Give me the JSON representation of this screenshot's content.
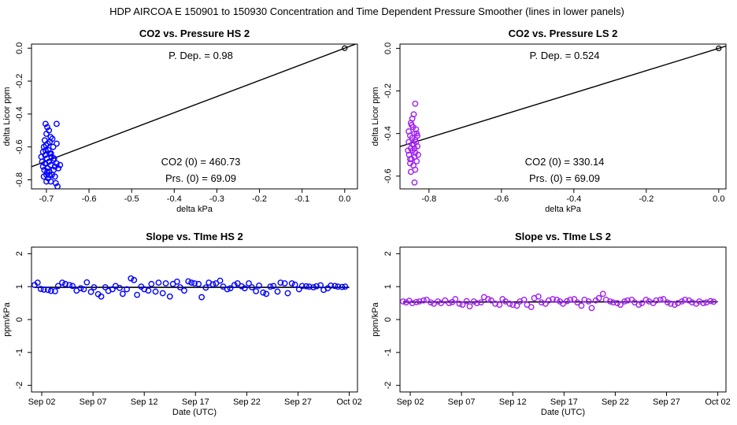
{
  "page_title": "HDP   AIRCOA E   150901 to 150930   Concentration and Time Dependent Pressure Smoother (lines in lower panels)",
  "colors": {
    "hs": "#0000ff",
    "ls": "#a020f0",
    "line": "#000000",
    "frame": "#000000"
  },
  "chart_data": [
    {
      "id": "co2-vs-pressure-hs2",
      "type": "scatter",
      "title": "CO2 vs. Pressure HS 2",
      "xlabel": "delta kPa",
      "ylabel": "delta Licor ppm",
      "xlim": [
        -0.735,
        0.03
      ],
      "ylim": [
        -0.855,
        0.025
      ],
      "xticks": [
        -0.7,
        -0.6,
        -0.5,
        -0.4,
        -0.3,
        -0.2,
        -0.1,
        0.0
      ],
      "xtick_labels": [
        "-0.7",
        "-0.6",
        "-0.5",
        "-0.4",
        "-0.3",
        "-0.2",
        "-0.1",
        "0.0"
      ],
      "yticks": [
        0.0,
        -0.2,
        -0.4,
        -0.6,
        -0.8
      ],
      "ytick_labels": [
        "0.0",
        "-0.2",
        "-0.4",
        "-0.6",
        "-0.8"
      ],
      "color": "#0000ff",
      "fit_line": {
        "slope": 0.98,
        "intercept": 0.0
      },
      "origin_point": [
        0.0,
        0.0
      ],
      "annotations": {
        "p_dep": "P. Dep. =  0.98",
        "co2_zero": "CO2 (0) =  460.73",
        "prs_zero": "Prs. (0) =  69.09"
      },
      "points": [
        [
          -0.702,
          -0.46
        ],
        [
          -0.698,
          -0.48
        ],
        [
          -0.694,
          -0.5
        ],
        [
          -0.7,
          -0.52
        ],
        [
          -0.69,
          -0.54
        ],
        [
          -0.704,
          -0.56
        ],
        [
          -0.676,
          -0.46
        ],
        [
          -0.684,
          -0.6
        ],
        [
          -0.697,
          -0.58
        ],
        [
          -0.706,
          -0.6
        ],
        [
          -0.702,
          -0.62
        ],
        [
          -0.692,
          -0.64
        ],
        [
          -0.708,
          -0.63
        ],
        [
          -0.688,
          -0.66
        ],
        [
          -0.699,
          -0.67
        ],
        [
          -0.694,
          -0.69
        ],
        [
          -0.703,
          -0.7
        ],
        [
          -0.69,
          -0.71
        ],
        [
          -0.697,
          -0.73
        ],
        [
          -0.705,
          -0.74
        ],
        [
          -0.693,
          -0.75
        ],
        [
          -0.7,
          -0.77
        ],
        [
          -0.687,
          -0.77
        ],
        [
          -0.708,
          -0.72
        ],
        [
          -0.696,
          -0.79
        ],
        [
          -0.69,
          -0.81
        ],
        [
          -0.68,
          -0.78
        ],
        [
          -0.683,
          -0.74
        ],
        [
          -0.676,
          -0.7
        ],
        [
          -0.668,
          -0.71
        ],
        [
          -0.672,
          -0.73
        ],
        [
          -0.686,
          -0.55
        ],
        [
          -0.712,
          -0.66
        ],
        [
          -0.71,
          -0.69
        ],
        [
          -0.7,
          -0.81
        ],
        [
          -0.678,
          -0.82
        ],
        [
          -0.674,
          -0.84
        ],
        [
          -0.695,
          -0.62
        ],
        [
          -0.689,
          -0.64
        ],
        [
          -0.682,
          -0.67
        ],
        [
          -0.703,
          -0.65
        ],
        [
          -0.698,
          -0.75
        ],
        [
          -0.693,
          -0.77
        ],
        [
          -0.68,
          -0.72
        ],
        [
          -0.706,
          -0.78
        ],
        [
          -0.684,
          -0.68
        ],
        [
          -0.701,
          -0.59
        ],
        [
          -0.692,
          -0.57
        ],
        [
          -0.676,
          -0.58
        ]
      ]
    },
    {
      "id": "co2-vs-pressure-ls2",
      "type": "scatter",
      "title": "CO2 vs. Pressure LS 2",
      "xlabel": "delta kPa",
      "ylabel": "delta Licor ppm",
      "xlim": [
        -0.88,
        0.02
      ],
      "ylim": [
        -0.66,
        0.02
      ],
      "xticks": [
        -0.8,
        -0.6,
        -0.4,
        -0.2,
        0.0
      ],
      "xtick_labels": [
        "-0.8",
        "-0.6",
        "-0.4",
        "-0.2",
        "0.0"
      ],
      "yticks": [
        0.0,
        -0.2,
        -0.4,
        -0.6
      ],
      "ytick_labels": [
        "0.0",
        "-0.2",
        "-0.4",
        "-0.6"
      ],
      "color": "#a020f0",
      "fit_line": {
        "slope": 0.524,
        "intercept": 0.0
      },
      "origin_point": [
        0.0,
        0.0
      ],
      "annotations": {
        "p_dep": "P. Dep. =  0.524",
        "co2_zero": "CO2 (0) =  330.14",
        "prs_zero": "Prs. (0) =  69.09"
      },
      "points": [
        [
          -0.838,
          -0.26
        ],
        [
          -0.842,
          -0.31
        ],
        [
          -0.846,
          -0.33
        ],
        [
          -0.85,
          -0.35
        ],
        [
          -0.844,
          -0.37
        ],
        [
          -0.836,
          -0.38
        ],
        [
          -0.84,
          -0.4
        ],
        [
          -0.852,
          -0.41
        ],
        [
          -0.846,
          -0.42
        ],
        [
          -0.838,
          -0.43
        ],
        [
          -0.856,
          -0.44
        ],
        [
          -0.842,
          -0.45
        ],
        [
          -0.832,
          -0.46
        ],
        [
          -0.85,
          -0.47
        ],
        [
          -0.845,
          -0.48
        ],
        [
          -0.838,
          -0.49
        ],
        [
          -0.855,
          -0.5
        ],
        [
          -0.84,
          -0.51
        ],
        [
          -0.848,
          -0.52
        ],
        [
          -0.834,
          -0.53
        ],
        [
          -0.852,
          -0.54
        ],
        [
          -0.843,
          -0.55
        ],
        [
          -0.838,
          -0.57
        ],
        [
          -0.85,
          -0.58
        ],
        [
          -0.84,
          -0.63
        ],
        [
          -0.856,
          -0.39
        ],
        [
          -0.832,
          -0.41
        ],
        [
          -0.848,
          -0.36
        ],
        [
          -0.836,
          -0.44
        ],
        [
          -0.858,
          -0.48
        ],
        [
          -0.83,
          -0.5
        ],
        [
          -0.846,
          -0.45
        ],
        [
          -0.84,
          -0.47
        ],
        [
          -0.852,
          -0.52
        ],
        [
          -0.834,
          -0.4
        ]
      ]
    },
    {
      "id": "slope-vs-time-hs2",
      "type": "scatter",
      "title": "Slope vs. TIme HS 2",
      "xlabel": "Date (UTC)",
      "ylabel": "ppm/kPa",
      "xlim": [
        0.0,
        31.8
      ],
      "ylim": [
        -2.2,
        2.2
      ],
      "xticks": [
        1,
        6,
        11,
        16,
        21,
        26,
        31
      ],
      "xtick_labels": [
        "Sep 02",
        "Sep 07",
        "Sep 12",
        "Sep 17",
        "Sep 22",
        "Sep 27",
        "Oct 02"
      ],
      "yticks": [
        -2,
        -1,
        0,
        1,
        2
      ],
      "ytick_labels": [
        "-2",
        "-1",
        "0",
        "1",
        "2"
      ],
      "color": "#0000ff",
      "smoother": {
        "x": [
          0.3,
          31.0
        ],
        "y": [
          0.98,
          0.98
        ]
      },
      "x": [
        0.3,
        0.6,
        0.9,
        1.2,
        1.6,
        1.9,
        2.3,
        2.6,
        3.0,
        3.3,
        3.7,
        4.0,
        4.4,
        4.8,
        5.1,
        5.4,
        5.8,
        6.1,
        6.5,
        6.8,
        7.2,
        7.5,
        7.9,
        8.2,
        8.6,
        8.9,
        9.3,
        9.7,
        10.0,
        10.3,
        10.7,
        11.0,
        11.4,
        11.7,
        12.1,
        12.4,
        12.8,
        13.1,
        13.5,
        13.8,
        14.2,
        14.5,
        14.9,
        15.3,
        15.6,
        15.9,
        16.3,
        16.6,
        17.0,
        17.3,
        17.7,
        18.0,
        18.4,
        18.7,
        19.1,
        19.4,
        19.8,
        20.1,
        20.5,
        20.8,
        21.2,
        21.5,
        21.9,
        22.2,
        22.6,
        22.9,
        23.3,
        23.6,
        24.0,
        24.3,
        24.7,
        25.0,
        25.4,
        25.7,
        26.1,
        26.4,
        26.8,
        27.1,
        27.5,
        27.8,
        28.2,
        28.5,
        28.9,
        29.2,
        29.6,
        29.9,
        30.3,
        30.6
      ],
      "y": [
        1.05,
        1.12,
        0.93,
        0.91,
        0.9,
        0.87,
        0.86,
        1.02,
        1.12,
        1.08,
        1.05,
        1.02,
        0.88,
        0.95,
        0.92,
        1.13,
        0.84,
        0.98,
        0.77,
        0.7,
        0.98,
        0.87,
        0.92,
        1.02,
        0.96,
        0.78,
        0.92,
        1.25,
        1.2,
        0.75,
        1.0,
        0.92,
        0.88,
        1.08,
        0.85,
        1.12,
        0.8,
        1.1,
        0.7,
        1.08,
        1.15,
        0.98,
        0.88,
        1.16,
        1.12,
        1.1,
        1.08,
        0.68,
        0.97,
        1.12,
        1.07,
        1.1,
        1.18,
        1.0,
        0.92,
        0.95,
        1.05,
        1.1,
        1.01,
        0.95,
        1.1,
        0.98,
        0.86,
        1.03,
        0.82,
        0.78,
        1.0,
        1.02,
        0.85,
        1.12,
        1.1,
        0.8,
        1.1,
        1.06,
        0.92,
        1.02,
        1.01,
        1.0,
        0.98,
        1.01,
        1.04,
        0.9,
        0.95,
        1.03,
        1.02,
        1.0,
        0.99,
        1.0
      ]
    },
    {
      "id": "slope-vs-time-ls2",
      "type": "scatter",
      "title": "Slope vs. TIme LS 2",
      "xlabel": "Date (UTC)",
      "ylabel": "ppm/kPa",
      "xlim": [
        0.0,
        31.8
      ],
      "ylim": [
        -2.2,
        2.2
      ],
      "xticks": [
        1,
        6,
        11,
        16,
        21,
        26,
        31
      ],
      "xtick_labels": [
        "Sep 02",
        "Sep 07",
        "Sep 12",
        "Sep 17",
        "Sep 22",
        "Sep 27",
        "Oct 02"
      ],
      "yticks": [
        -2,
        -1,
        0,
        1,
        2
      ],
      "ytick_labels": [
        "-2",
        "-1",
        "0",
        "1",
        "2"
      ],
      "color": "#a020f0",
      "smoother": {
        "x": [
          0.3,
          31.0
        ],
        "y": [
          0.53,
          0.54
        ]
      },
      "x": [
        0.3,
        0.6,
        0.9,
        1.2,
        1.6,
        1.9,
        2.3,
        2.6,
        3.0,
        3.3,
        3.7,
        4.0,
        4.4,
        4.8,
        5.1,
        5.4,
        5.8,
        6.1,
        6.5,
        6.8,
        7.2,
        7.5,
        7.9,
        8.2,
        8.6,
        8.9,
        9.3,
        9.7,
        10.0,
        10.3,
        10.7,
        11.0,
        11.4,
        11.7,
        12.1,
        12.4,
        12.8,
        13.1,
        13.5,
        13.8,
        14.2,
        14.5,
        14.9,
        15.3,
        15.6,
        15.9,
        16.3,
        16.6,
        17.0,
        17.3,
        17.7,
        18.0,
        18.4,
        18.7,
        19.1,
        19.4,
        19.8,
        20.1,
        20.5,
        20.8,
        21.2,
        21.5,
        21.9,
        22.2,
        22.6,
        22.9,
        23.3,
        23.6,
        24.0,
        24.3,
        24.7,
        25.0,
        25.4,
        25.7,
        26.1,
        26.4,
        26.8,
        27.1,
        27.5,
        27.8,
        28.2,
        28.5,
        28.9,
        29.2,
        29.6,
        29.9,
        30.3,
        30.6
      ],
      "y": [
        0.55,
        0.52,
        0.57,
        0.5,
        0.53,
        0.55,
        0.58,
        0.6,
        0.52,
        0.48,
        0.55,
        0.5,
        0.58,
        0.5,
        0.53,
        0.62,
        0.48,
        0.45,
        0.56,
        0.4,
        0.55,
        0.5,
        0.52,
        0.68,
        0.62,
        0.58,
        0.48,
        0.45,
        0.62,
        0.55,
        0.48,
        0.45,
        0.42,
        0.55,
        0.6,
        0.45,
        0.38,
        0.65,
        0.7,
        0.52,
        0.48,
        0.58,
        0.62,
        0.6,
        0.55,
        0.48,
        0.56,
        0.6,
        0.62,
        0.52,
        0.42,
        0.6,
        0.55,
        0.35,
        0.58,
        0.65,
        0.78,
        0.6,
        0.55,
        0.52,
        0.5,
        0.45,
        0.55,
        0.58,
        0.6,
        0.52,
        0.45,
        0.5,
        0.6,
        0.55,
        0.5,
        0.58,
        0.6,
        0.62,
        0.52,
        0.48,
        0.45,
        0.5,
        0.55,
        0.6,
        0.58,
        0.52,
        0.48,
        0.55,
        0.5,
        0.52,
        0.56,
        0.54
      ]
    }
  ]
}
